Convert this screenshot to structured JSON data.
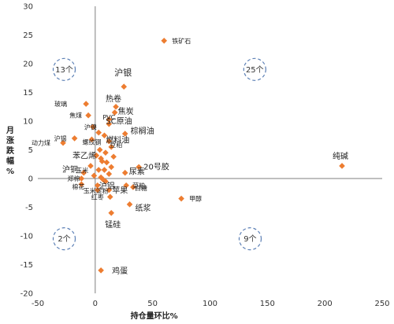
{
  "chart_data": {
    "type": "scatter",
    "xlabel": "持仓量环比%",
    "ylabel": "月涨跌幅%",
    "xlim": [
      -50,
      250
    ],
    "ylim": [
      -20,
      30
    ],
    "x_ticks": [
      "-50",
      "0",
      "50",
      "100",
      "150",
      "200",
      "250"
    ],
    "y_ticks": [
      "-20",
      "-15",
      "-10",
      "-5",
      "0",
      "5",
      "10",
      "15",
      "20",
      "25",
      "30"
    ],
    "marker_color": "#ED7D31",
    "quadrant_counts": [
      {
        "label": "13个",
        "x": -27,
        "y": 19
      },
      {
        "label": "25个",
        "x": 139,
        "y": 19
      },
      {
        "label": "2个",
        "x": -27,
        "y": -10.5
      },
      {
        "label": "9个",
        "x": 135,
        "y": -10.5
      }
    ],
    "points": [
      {
        "name": "铁矿石",
        "x": 60,
        "y": 24
      },
      {
        "name": "沪银",
        "x": 25,
        "y": 16
      },
      {
        "name": "玻璃",
        "x": -8,
        "y": 13
      },
      {
        "name": "热卷",
        "x": 18,
        "y": 12.5
      },
      {
        "name": "焦炭",
        "x": 17,
        "y": 11.5
      },
      {
        "name": "焦煤",
        "x": -6,
        "y": 11
      },
      {
        "name": "PVC",
        "x": 12,
        "y": 10.3
      },
      {
        "name": "SC原油",
        "x": 12,
        "y": 9.5
      },
      {
        "name": "沪镍",
        "x": -2,
        "y": 9
      },
      {
        "name": "棕榈油",
        "x": 26,
        "y": 7.8
      },
      {
        "name": "沪锡",
        "x": -18,
        "y": 7
      },
      {
        "name": "动力煤",
        "x": -28,
        "y": 6.2
      },
      {
        "name": "螺纹钢",
        "x": -3,
        "y": 6.8
      },
      {
        "name": "燃料油",
        "x": 12,
        "y": 6.5
      },
      {
        "name": "豆粕",
        "x": 14,
        "y": 5.5
      },
      {
        "name": "苯乙烯",
        "x": 5,
        "y": 3.5
      },
      {
        "name": "沪铜",
        "x": -4,
        "y": 2.2
      },
      {
        "name": "20号胶",
        "x": 38,
        "y": 2
      },
      {
        "name": "尿素",
        "x": 26,
        "y": 1
      },
      {
        "name": "玉米",
        "x": -10,
        "y": 1
      },
      {
        "name": "郑棉",
        "x": -12,
        "y": 0
      },
      {
        "name": "棉花",
        "x": -12,
        "y": -1
      },
      {
        "name": "沪铝",
        "x": 2,
        "y": -1.2
      },
      {
        "name": "菜粕",
        "x": 27,
        "y": -1.2
      },
      {
        "name": "白糖",
        "x": 33,
        "y": -1.5
      },
      {
        "name": "苹果",
        "x": 12,
        "y": -2
      },
      {
        "name": "玉米淀粉",
        "x": 2,
        "y": -2
      },
      {
        "name": "红枣",
        "x": 13,
        "y": -3.2
      },
      {
        "name": "甲醇",
        "x": 75,
        "y": -3.5
      },
      {
        "name": "纸浆",
        "x": 30,
        "y": -4.5
      },
      {
        "name": "锰硅",
        "x": 14,
        "y": -6
      },
      {
        "name": "纯碱",
        "x": 215,
        "y": 2.2
      },
      {
        "name": "鸡蛋",
        "x": 5,
        "y": -16
      }
    ],
    "extra_points": [
      {
        "x": 3,
        "y": 8
      },
      {
        "x": 8,
        "y": 7.5
      },
      {
        "x": 4,
        "y": 5
      },
      {
        "x": 9,
        "y": 4.5
      },
      {
        "x": 6,
        "y": 3
      },
      {
        "x": 10,
        "y": 2.8
      },
      {
        "x": 3,
        "y": 1.5
      },
      {
        "x": 8,
        "y": 1.5
      },
      {
        "x": 12,
        "y": 0.8
      },
      {
        "x": 5,
        "y": 0.2
      },
      {
        "x": 9,
        "y": -0.5
      },
      {
        "x": 14,
        "y": 2
      },
      {
        "x": 1,
        "y": 4
      },
      {
        "x": 7,
        "y": -0.2
      },
      {
        "x": 16,
        "y": 3.8
      },
      {
        "x": -1,
        "y": 0.5
      }
    ]
  }
}
